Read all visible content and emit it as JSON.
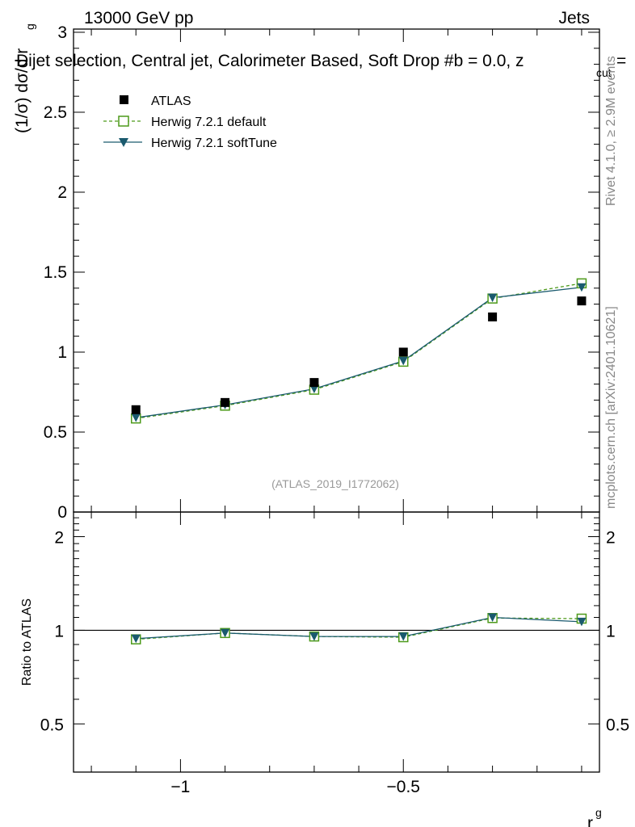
{
  "header": {
    "energy_label": "13000 GeV pp",
    "process_label": "Jets",
    "plot_title": "Dijet selection, Central jet, Calorimeter Based, Soft Drop #b = 0.0, z",
    "title_cut_sub": "cut",
    "title_tail": "=",
    "analysis_id": "(ATLAS_2019_I1772062)",
    "side_rivet": "Rivet 4.1.0, ≥ 2.9M events",
    "side_mcplots": "mcplots.cern.ch [arXiv:2401.10621]"
  },
  "colors": {
    "atlas": "#000000",
    "herwig_default": "#4d9a1a",
    "herwig_softtune": "#1a5a6e"
  },
  "chart_data": [
    {
      "type": "scatter",
      "panel": "main",
      "ylabel": "(1/σ) dσ/d r",
      "ylabel_sub": "g",
      "xlabel": "r",
      "xlabel_sub": "g",
      "xlim": [
        -1.24,
        -0.06
      ],
      "ylim": [
        0,
        3.02
      ],
      "y_ticks": [
        "0",
        "0.5",
        "1",
        "1.5",
        "2",
        "2.5",
        "3"
      ],
      "x": [
        -1.1,
        -0.9,
        -0.7,
        -0.5,
        -0.3,
        -0.1
      ],
      "series": [
        {
          "name": "ATLAS",
          "style": "marker",
          "values": [
            0.64,
            0.685,
            0.81,
            1.0,
            1.22,
            1.32
          ]
        },
        {
          "name": "Herwig 7.2.1 default",
          "style": "dashed-open-square",
          "values": [
            0.585,
            0.665,
            0.765,
            0.94,
            1.335,
            1.43
          ]
        },
        {
          "name": "Herwig 7.2.1 softTune",
          "style": "solid-triangle",
          "values": [
            0.59,
            0.67,
            0.77,
            0.945,
            1.34,
            1.405
          ]
        }
      ],
      "legend": [
        "ATLAS",
        "Herwig 7.2.1 default",
        "Herwig 7.2.1 softTune"
      ],
      "legend_position": "top-left"
    },
    {
      "type": "line",
      "panel": "ratio",
      "ylabel": "Ratio to ATLAS",
      "xlabel": "r",
      "xlabel_sub": "g",
      "xlim": [
        -1.24,
        -0.06
      ],
      "ylim": [
        0.35,
        2.4
      ],
      "y_ticks": [
        "0.5",
        "1",
        "2"
      ],
      "x_ticks": [
        "−1",
        "−0.5"
      ],
      "x": [
        -1.1,
        -0.9,
        -0.7,
        -0.5,
        -0.3,
        -0.1
      ],
      "reference_line": 1,
      "series": [
        {
          "name": "Herwig 7.2.1 default",
          "values": [
            0.935,
            0.98,
            0.955,
            0.95,
            1.095,
            1.09
          ]
        },
        {
          "name": "Herwig 7.2.1 softTune",
          "values": [
            0.94,
            0.98,
            0.955,
            0.955,
            1.1,
            1.065
          ]
        }
      ]
    }
  ]
}
